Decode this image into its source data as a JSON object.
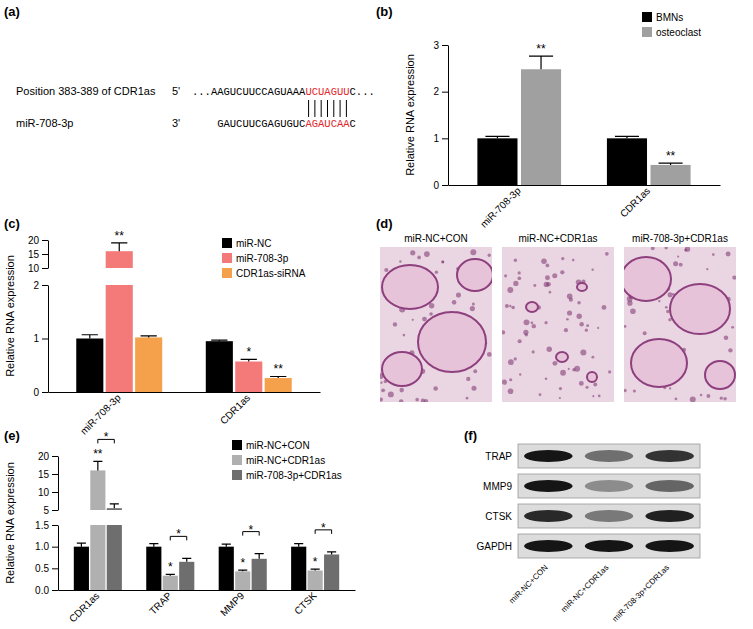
{
  "panel_labels": [
    "(a)",
    "(b)",
    "(c)",
    "(d)",
    "(e)",
    "(f)"
  ],
  "alignment": {
    "rows": [
      {
        "label": "Position 383-389 of CDR1as",
        "end": "5'",
        "sequence": [
          "...AAGUCUUCCAGUAAA",
          "UCUAGUU",
          "C..."
        ]
      },
      {
        "label": "miR-708-3p",
        "end": "3'",
        "sequence": [
          "GAUCUUCGAGUGUC",
          "AGAUCAA",
          "C"
        ]
      }
    ]
  },
  "chart_data": [
    {
      "type": "bar",
      "y_label": "Relative RNA expression",
      "categories": [
        "miR-708-3p",
        "CDR1as"
      ],
      "series": [
        {
          "name": "BMNs",
          "color": "#000000",
          "values": [
            1.0,
            1.0
          ],
          "errors": [
            0.04,
            0.04
          ]
        },
        {
          "name": "osteoclast",
          "color": "#a0a0a0",
          "values": [
            2.48,
            0.43
          ],
          "errors": [
            0.28,
            0.04
          ]
        }
      ],
      "ylim": [
        0,
        3
      ],
      "yticks": [
        0,
        1,
        2,
        3
      ],
      "legend": "upper right",
      "annotations": [
        {
          "text": "**",
          "category": 0,
          "series": 1
        },
        {
          "text": "**",
          "category": 1,
          "series": 1
        }
      ]
    },
    {
      "type": "bar",
      "y_label": "Relative RNA expression",
      "categories": [
        "miR-708-3p",
        "CDR1as"
      ],
      "series": [
        {
          "name": "miR-NC",
          "color": "#000000",
          "values": [
            1.0,
            0.95
          ],
          "errors": [
            0.07,
            0.02
          ]
        },
        {
          "name": "miR-708-3p",
          "color": "#f47a7a",
          "values": [
            16,
            0.57
          ],
          "errors": [
            3,
            0.04
          ]
        },
        {
          "name": "CDR1as-siRNA",
          "color": "#f5a04a",
          "values": [
            1.02,
            0.26
          ],
          "errors": [
            0.03,
            0.03
          ]
        }
      ],
      "ylim": [
        0,
        20
      ],
      "y_break": [
        2,
        10
      ],
      "yticks": [
        0,
        1,
        2,
        10,
        15,
        20
      ],
      "legend": "upper right",
      "annotations": [
        {
          "text": "**",
          "category": 0,
          "series": 1
        },
        {
          "text": "*",
          "category": 1,
          "series": 1
        },
        {
          "text": "**",
          "category": 1,
          "series": 2
        }
      ]
    },
    {
      "type": "bar",
      "y_label": "Relative RNA expression",
      "categories": [
        "CDR1as",
        "TRAP",
        "MMP9",
        "CTSK"
      ],
      "series": [
        {
          "name": "miR-NC+CON",
          "color": "#000000",
          "values": [
            1.0,
            1.0,
            1.0,
            1.0
          ],
          "errors": [
            0.08,
            0.07,
            0.06,
            0.07
          ]
        },
        {
          "name": "miR-NC+CDR1as",
          "color": "#b0b0b0",
          "values": [
            16,
            0.33,
            0.43,
            0.45
          ],
          "errors": [
            2.5,
            0.03,
            0.03,
            0.03
          ]
        },
        {
          "name": "miR-708-3p+CDR1as",
          "color": "#6e6e6e",
          "values": [
            5.5,
            0.65,
            0.72,
            0.82
          ],
          "errors": [
            1.2,
            0.08,
            0.12,
            0.06
          ]
        }
      ],
      "ylim": [
        0,
        20
      ],
      "y_break": [
        1.5,
        5
      ],
      "yticks": [
        {
          "value": 0,
          "label": "0.0"
        },
        {
          "value": 0.5,
          "label": "0.5"
        },
        {
          "value": 1,
          "label": "1.0"
        },
        {
          "value": 1.5,
          "label": "1.5"
        },
        5,
        10,
        15,
        20
      ],
      "legend": "upper right",
      "annotations": [
        {
          "text": "**",
          "category": 0,
          "series": 1
        },
        {
          "text": "*",
          "category": 1,
          "series": 1
        },
        {
          "text": "*",
          "category": 2,
          "series": 1
        },
        {
          "text": "*",
          "category": 3,
          "series": 1
        }
      ],
      "brackets": [
        {
          "text": "*",
          "category": 0,
          "series": [
            1,
            2
          ]
        },
        {
          "text": "*",
          "category": 1,
          "series": [
            1,
            2
          ]
        },
        {
          "text": "*",
          "category": 2,
          "series": [
            1,
            2
          ]
        },
        {
          "text": "*",
          "category": 3,
          "series": [
            1,
            2
          ]
        }
      ]
    }
  ],
  "images": {
    "titles": [
      "miR-NC+CON",
      "miR-NC+CDR1as",
      "miR-708-3p+CDR1as"
    ]
  },
  "blot": {
    "rows": [
      "TRAP",
      "MMP9",
      "CTSK",
      "GAPDH"
    ],
    "lanes": [
      "miR-NC+CON",
      "miR-NC+CDR1as",
      "miR-708-3p+CDR1as"
    ],
    "band_intensity": [
      [
        1.0,
        0.55,
        0.85
      ],
      [
        1.0,
        0.4,
        0.6
      ],
      [
        0.9,
        0.5,
        0.95
      ],
      [
        1.0,
        1.0,
        1.0
      ]
    ]
  }
}
